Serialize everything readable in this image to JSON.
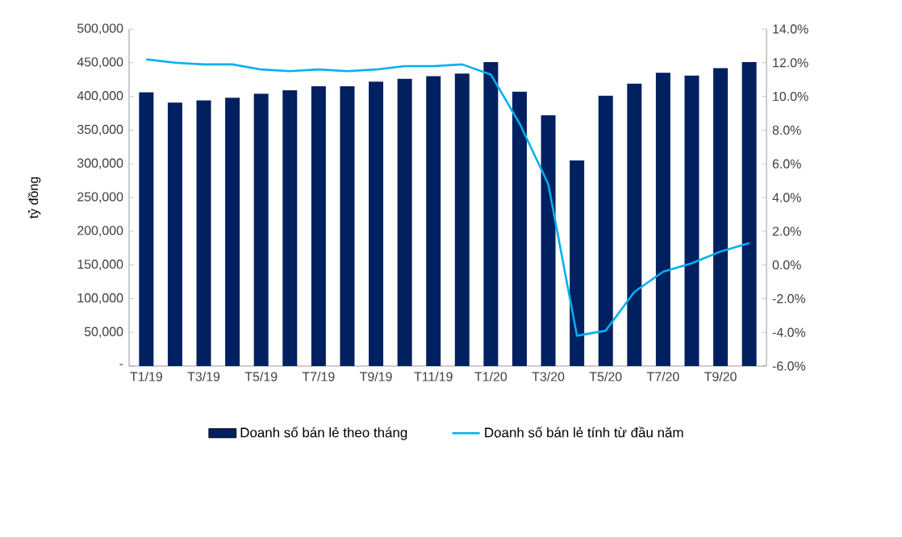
{
  "chart_data": {
    "type": "bar",
    "ylabel": "tỷ đồng",
    "categories": [
      "T1/19",
      null,
      "T3/19",
      null,
      "T5/19",
      null,
      "T7/19",
      null,
      "T9/19",
      null,
      "T11/19",
      null,
      "T1/20",
      null,
      "T3/20",
      null,
      "T5/20",
      null,
      "T7/20",
      null,
      "T9/20",
      null
    ],
    "series": [
      {
        "name": "Doanh số bán lẻ theo tháng",
        "color": "#002060",
        "values": [
          406000,
          391000,
          394000,
          398000,
          404000,
          409000,
          415000,
          415000,
          422000,
          426000,
          430000,
          434000,
          451000,
          407000,
          372000,
          305000,
          401000,
          419000,
          435000,
          431000,
          442000,
          451000
        ]
      },
      {
        "name": "Doanh số bán lẻ tính từ đầu năm",
        "type": "line",
        "axis": "y2",
        "color": "#00b0f0",
        "values": [
          12.2,
          12.0,
          11.9,
          11.9,
          11.6,
          11.5,
          11.6,
          11.5,
          11.6,
          11.8,
          11.8,
          11.9,
          11.3,
          8.4,
          4.8,
          -4.2,
          -3.9,
          -1.6,
          -0.4,
          0.1,
          0.8,
          1.3
        ]
      }
    ],
    "ylim": [
      0,
      500000
    ],
    "yticks": [
      {
        "value": 0,
        "label": "-"
      },
      {
        "value": 50000,
        "label": "50,000"
      },
      {
        "value": 100000,
        "label": "100,000"
      },
      {
        "value": 150000,
        "label": "150,000"
      },
      {
        "value": 200000,
        "label": "200,000"
      },
      {
        "value": 250000,
        "label": "250,000"
      },
      {
        "value": 300000,
        "label": "300,000"
      },
      {
        "value": 350000,
        "label": "350,000"
      },
      {
        "value": 400000,
        "label": "400,000"
      },
      {
        "value": 450000,
        "label": "450,000"
      },
      {
        "value": 500000,
        "label": "500,000"
      }
    ],
    "y2lim": [
      -6,
      14
    ],
    "y2ticks": [
      {
        "value": -6,
        "label": "-6.0%"
      },
      {
        "value": -4,
        "label": "-4.0%"
      },
      {
        "value": -2,
        "label": "-2.0%"
      },
      {
        "value": 0,
        "label": "0.0%"
      },
      {
        "value": 2,
        "label": "2.0%"
      },
      {
        "value": 4,
        "label": "4.0%"
      },
      {
        "value": 6,
        "label": "6.0%"
      },
      {
        "value": 8,
        "label": "8.0%"
      },
      {
        "value": 10,
        "label": "10.0%"
      },
      {
        "value": 12,
        "label": "12.0%"
      },
      {
        "value": 14,
        "label": "14.0%"
      }
    ],
    "legend": "bottom",
    "grid": false
  }
}
